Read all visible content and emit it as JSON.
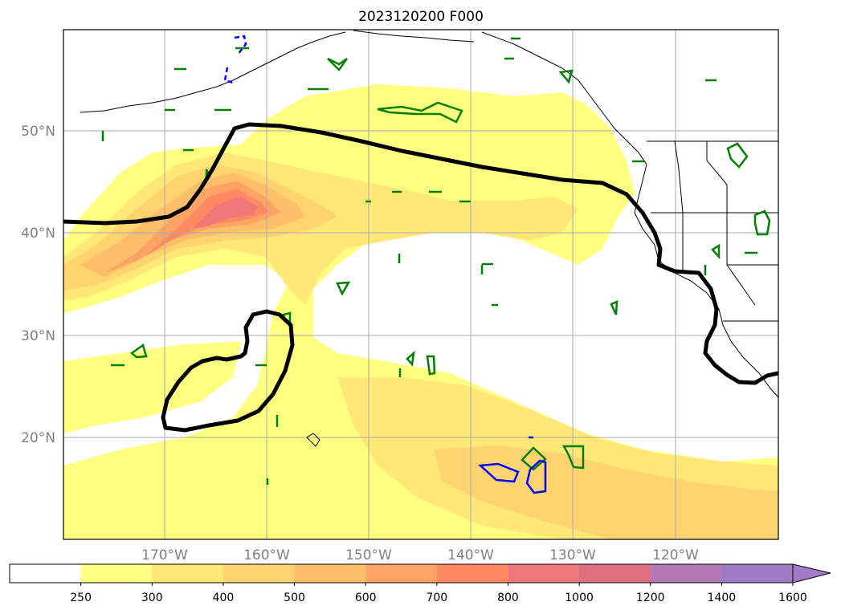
{
  "title": "2023120200 F000",
  "lat_labels": [
    "50°N",
    "40°N",
    "30°N",
    "20°N"
  ],
  "lon_labels": [
    "170°W",
    "160°W",
    "150°W",
    "140°W",
    "130°W",
    "120°W"
  ],
  "colorbar": {
    "ticks": [
      "250",
      "300",
      "400",
      "500",
      "600",
      "700",
      "800",
      "1000",
      "1200",
      "1400",
      "1600"
    ],
    "colors": [
      "#ffffff",
      "#ffff80",
      "#ffe878",
      "#ffd470",
      "#ffbf6a",
      "#ffa464",
      "#ff8a62",
      "#f07878",
      "#e07080",
      "#b478b4",
      "#a07cc8"
    ],
    "extend": "max"
  },
  "contour_colors": {
    "jet": "#000000",
    "green": "#008000",
    "blue": "#0000ff",
    "coast": "#000000"
  }
}
